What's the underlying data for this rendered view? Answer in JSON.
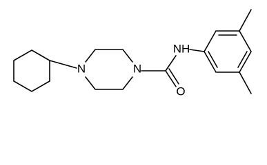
{
  "atoms": [
    {
      "label": "N"
    },
    {
      "label": "N"
    },
    {
      "label": "NH"
    },
    {
      "label": "O"
    }
  ]
}
